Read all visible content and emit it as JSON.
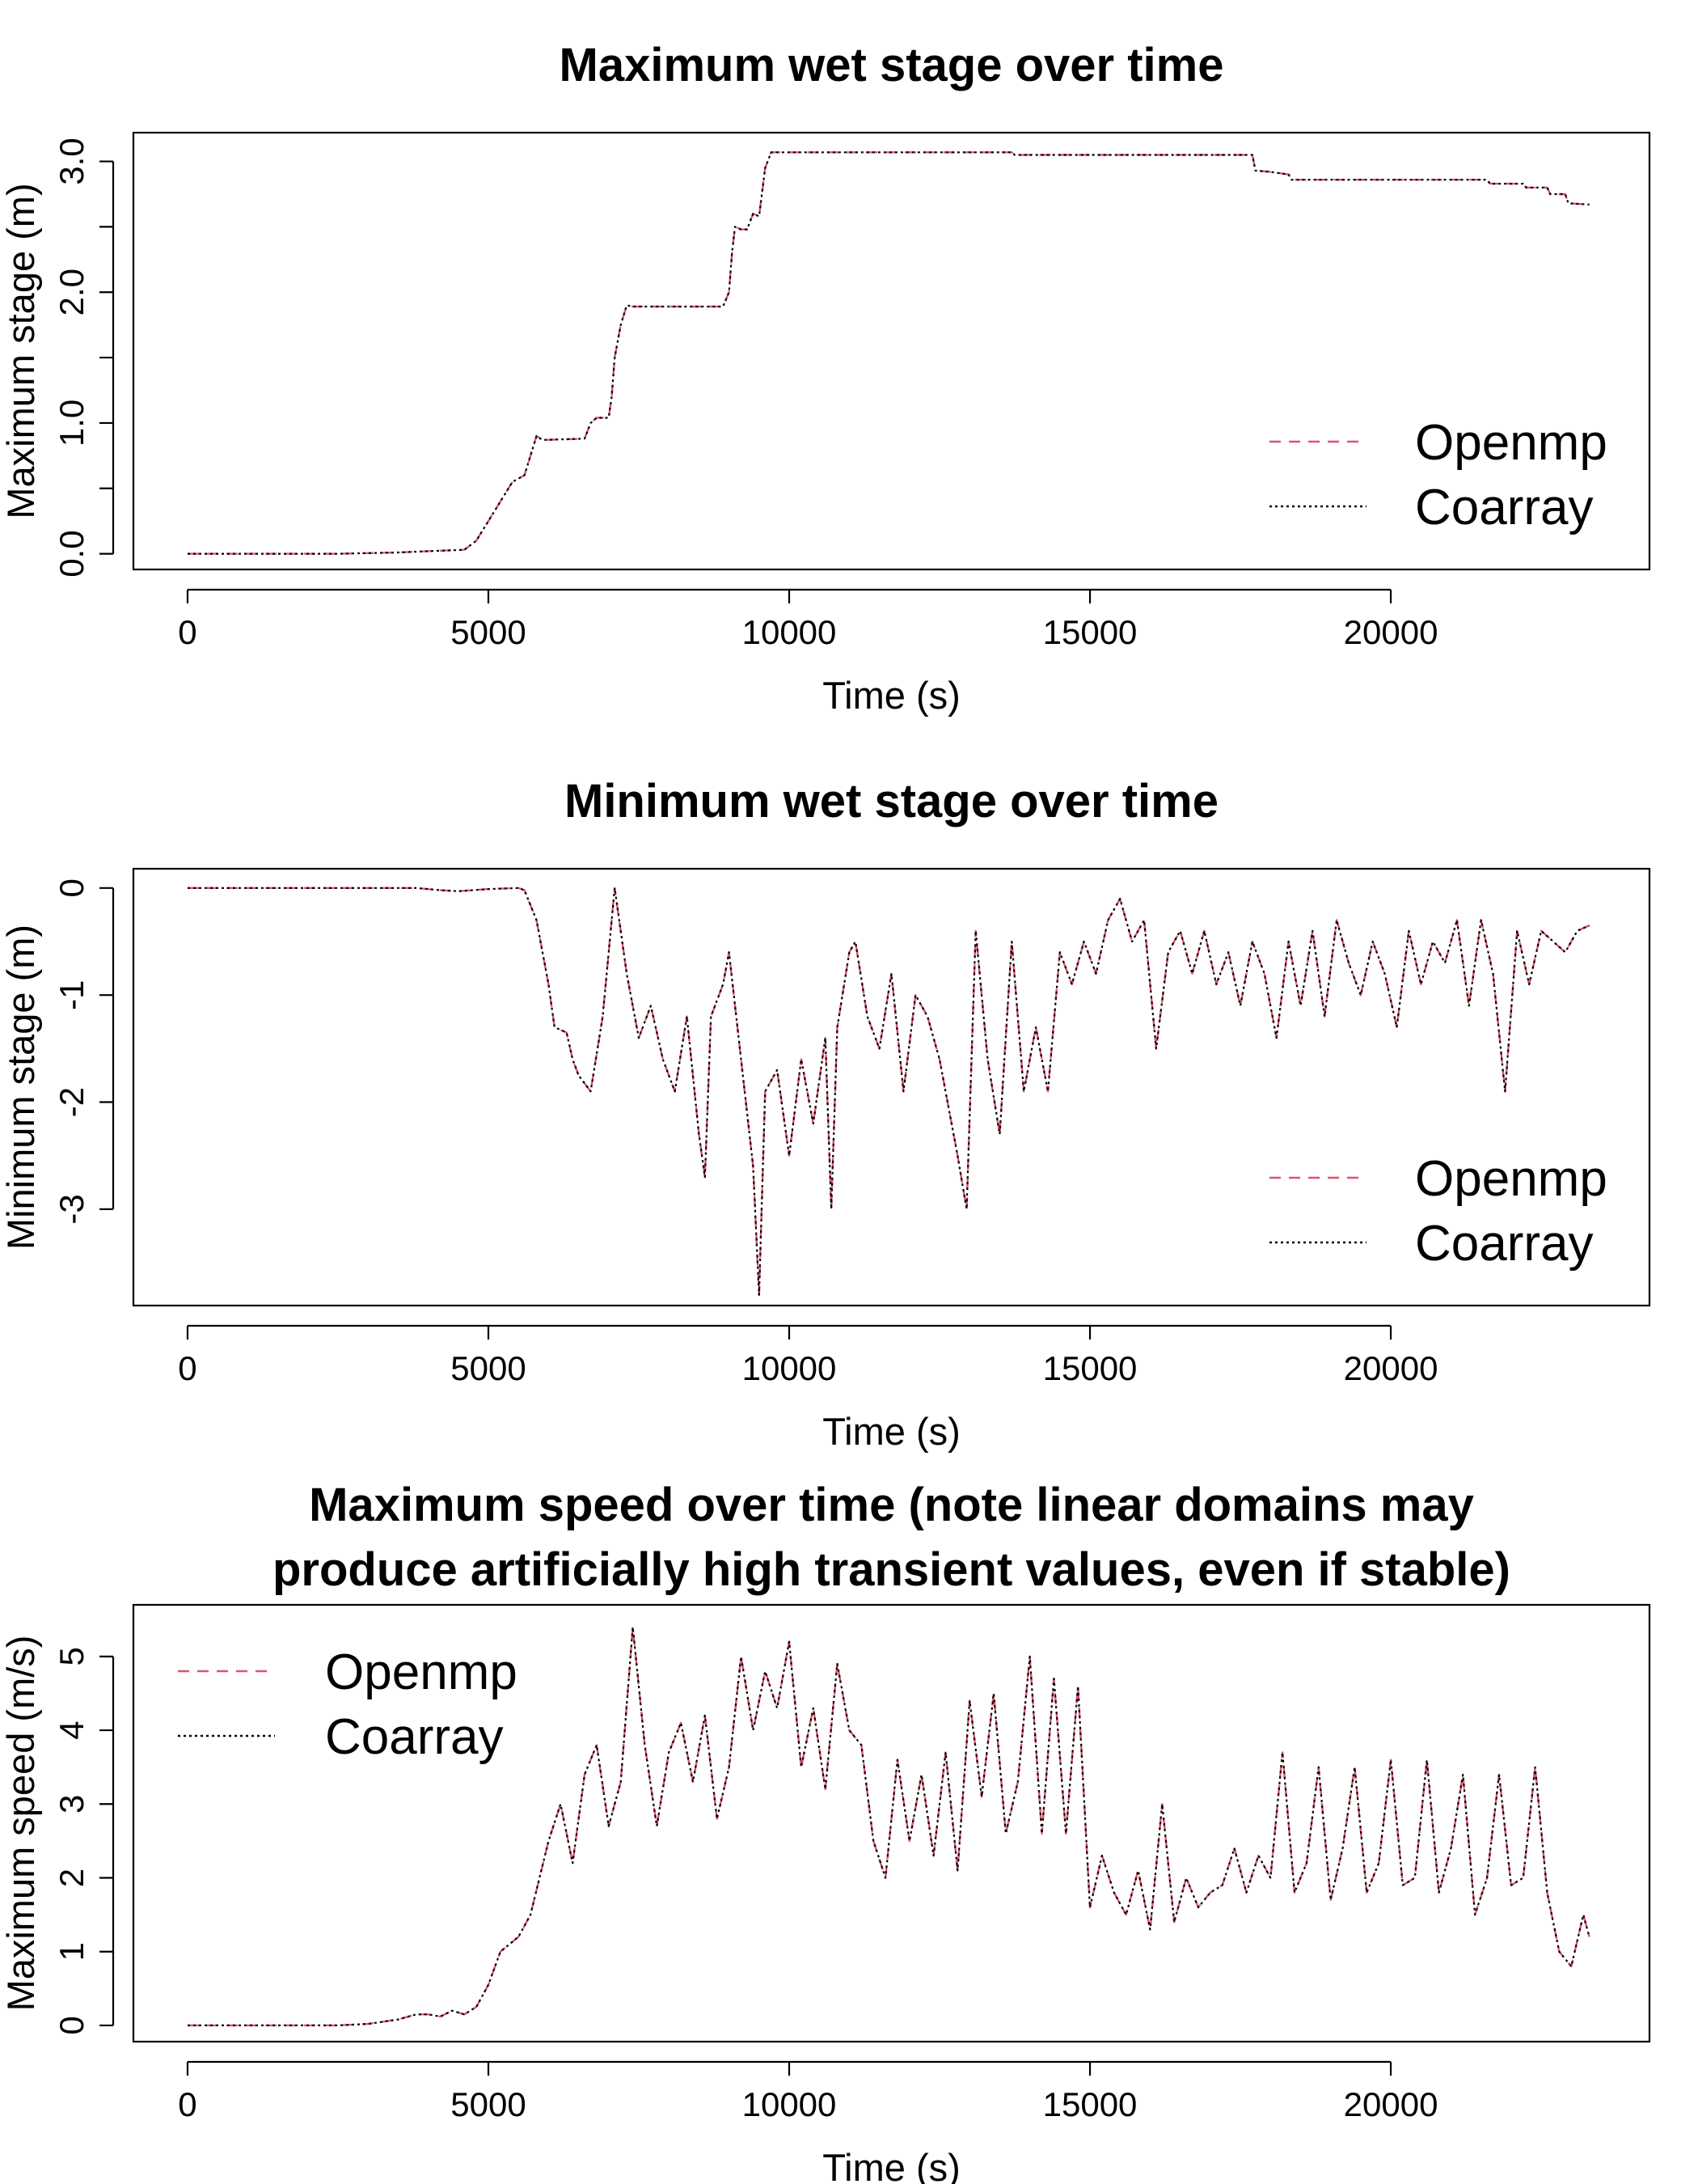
{
  "chart_data": [
    {
      "type": "line",
      "title": "Maximum wet stage over time",
      "xlabel": "Time (s)",
      "ylabel": "Maximum stage (m)",
      "xlim": [
        -900,
        24300
      ],
      "ylim": [
        -0.12,
        3.22
      ],
      "xticks": [
        0,
        5000,
        10000,
        15000,
        20000
      ],
      "xtick_labels": [
        "0",
        "5000",
        "10000",
        "15000",
        "20000"
      ],
      "yticks": [
        0,
        0.5,
        1.0,
        1.5,
        2.0,
        2.5,
        3.0
      ],
      "ytick_labels": [
        "0.0",
        "",
        "1.0",
        "",
        "2.0",
        "",
        "3.0"
      ],
      "grid": false,
      "legend_position": "bottom-right",
      "series": [
        {
          "name": "Openmp",
          "color": "#DF536B",
          "style": "dashed"
        },
        {
          "name": "Coarray",
          "color": "#000000",
          "style": "dotted"
        }
      ],
      "x": [
        0,
        2500,
        3500,
        4000,
        4600,
        4800,
        5000,
        5200,
        5400,
        5600,
        5700,
        5800,
        5900,
        6600,
        6700,
        6800,
        7000,
        7050,
        7100,
        7200,
        7300,
        7400,
        8900,
        9000,
        9050,
        9100,
        9200,
        9300,
        9400,
        9500,
        9600,
        9700,
        10000,
        13700,
        13750,
        17700,
        17750,
        18000,
        18300,
        18350,
        21600,
        21650,
        22200,
        22250,
        22600,
        22650,
        22900,
        22950,
        23300
      ],
      "y": [
        0.0,
        0.0,
        0.01,
        0.02,
        0.03,
        0.1,
        0.25,
        0.4,
        0.55,
        0.6,
        0.75,
        0.9,
        0.87,
        0.88,
        1.0,
        1.04,
        1.04,
        1.2,
        1.5,
        1.75,
        1.9,
        1.89,
        1.89,
        2.0,
        2.3,
        2.5,
        2.48,
        2.48,
        2.6,
        2.58,
        2.95,
        3.07,
        3.07,
        3.07,
        3.05,
        3.05,
        2.93,
        2.92,
        2.9,
        2.86,
        2.86,
        2.83,
        2.83,
        2.8,
        2.8,
        2.75,
        2.75,
        2.68,
        2.67
      ]
    },
    {
      "type": "line",
      "title": "Minimum wet stage over time",
      "xlabel": "Time (s)",
      "ylabel": "Minimum stage (m)",
      "xlim": [
        -900,
        24300
      ],
      "ylim": [
        -3.9,
        0.18
      ],
      "xticks": [
        0,
        5000,
        10000,
        15000,
        20000
      ],
      "xtick_labels": [
        "0",
        "5000",
        "10000",
        "15000",
        "20000"
      ],
      "yticks": [
        0,
        -1,
        -2,
        -3
      ],
      "ytick_labels": [
        "0",
        "-1",
        "-2",
        "-3"
      ],
      "grid": false,
      "legend_position": "bottom-right",
      "series": [
        {
          "name": "Openmp",
          "color": "#DF536B",
          "style": "dashed"
        },
        {
          "name": "Coarray",
          "color": "#000000",
          "style": "dotted"
        }
      ],
      "x": [
        0,
        2000,
        3800,
        4200,
        4500,
        5000,
        5500,
        5600,
        5800,
        6000,
        6100,
        6300,
        6400,
        6500,
        6700,
        6900,
        7100,
        7300,
        7500,
        7700,
        7900,
        8100,
        8300,
        8500,
        8600,
        8700,
        8900,
        9000,
        9200,
        9400,
        9500,
        9600,
        9800,
        10000,
        10200,
        10400,
        10600,
        10700,
        10800,
        11000,
        11100,
        11300,
        11500,
        11700,
        11900,
        12100,
        12300,
        12500,
        12800,
        12950,
        13100,
        13300,
        13500,
        13700,
        13900,
        14100,
        14300,
        14500,
        14700,
        14900,
        15100,
        15300,
        15500,
        15700,
        15900,
        16100,
        16300,
        16500,
        16700,
        16900,
        17100,
        17300,
        17500,
        17700,
        17900,
        18100,
        18300,
        18500,
        18700,
        18900,
        19100,
        19300,
        19500,
        19700,
        19900,
        20100,
        20300,
        20500,
        20700,
        20900,
        21100,
        21300,
        21500,
        21700,
        21900,
        22100,
        22300,
        22500,
        22700,
        22900,
        23100,
        23300
      ],
      "y": [
        0.0,
        0.0,
        0.0,
        -0.02,
        -0.03,
        -0.01,
        0.0,
        -0.02,
        -0.3,
        -0.9,
        -1.3,
        -1.35,
        -1.6,
        -1.75,
        -1.9,
        -1.2,
        0.0,
        -0.8,
        -1.4,
        -1.1,
        -1.6,
        -1.9,
        -1.2,
        -2.3,
        -2.7,
        -1.2,
        -0.9,
        -0.6,
        -1.6,
        -2.6,
        -3.8,
        -1.9,
        -1.7,
        -2.5,
        -1.6,
        -2.2,
        -1.4,
        -3.0,
        -1.3,
        -0.6,
        -0.5,
        -1.2,
        -1.5,
        -0.8,
        -1.9,
        -1.0,
        -1.2,
        -1.6,
        -2.5,
        -3.0,
        -0.4,
        -1.6,
        -2.3,
        -0.5,
        -1.9,
        -1.3,
        -1.9,
        -0.6,
        -0.9,
        -0.5,
        -0.8,
        -0.3,
        -0.1,
        -0.5,
        -0.3,
        -1.5,
        -0.6,
        -0.4,
        -0.8,
        -0.4,
        -0.9,
        -0.6,
        -1.1,
        -0.5,
        -0.8,
        -1.4,
        -0.5,
        -1.1,
        -0.4,
        -1.2,
        -0.3,
        -0.7,
        -1.0,
        -0.5,
        -0.8,
        -1.3,
        -0.4,
        -0.9,
        -0.5,
        -0.7,
        -0.3,
        -1.1,
        -0.3,
        -0.8,
        -1.9,
        -0.4,
        -0.9,
        -0.4,
        -0.5,
        -0.6,
        -0.4,
        -0.35
      ]
    },
    {
      "type": "line",
      "title": "Maximum speed over time (note linear domains may produce artificially high transient values, even if stable)",
      "title_lines": [
        "Maximum speed over time (note linear domains may",
        "produce artificially high transient values, even if stable)"
      ],
      "xlabel": "Time (s)",
      "ylabel": "Maximum speed (m/s)",
      "xlim": [
        -900,
        24300
      ],
      "ylim": [
        -0.22,
        5.7
      ],
      "xticks": [
        0,
        5000,
        10000,
        15000,
        20000
      ],
      "xtick_labels": [
        "0",
        "5000",
        "10000",
        "15000",
        "20000"
      ],
      "yticks": [
        0,
        1,
        2,
        3,
        4,
        5
      ],
      "ytick_labels": [
        "0",
        "1",
        "2",
        "3",
        "4",
        "5"
      ],
      "grid": false,
      "legend_position": "top-left",
      "series": [
        {
          "name": "Openmp",
          "color": "#DF536B",
          "style": "dashed"
        },
        {
          "name": "Coarray",
          "color": "#000000",
          "style": "dotted"
        }
      ],
      "x": [
        0,
        2500,
        3000,
        3500,
        3800,
        4000,
        4200,
        4400,
        4600,
        4800,
        5000,
        5200,
        5500,
        5700,
        6000,
        6200,
        6400,
        6600,
        6800,
        7000,
        7200,
        7400,
        7600,
        7800,
        8000,
        8200,
        8400,
        8600,
        8800,
        9000,
        9200,
        9400,
        9600,
        9800,
        10000,
        10200,
        10400,
        10600,
        10800,
        11000,
        11200,
        11400,
        11600,
        11800,
        12000,
        12200,
        12400,
        12600,
        12800,
        13000,
        13200,
        13400,
        13600,
        13800,
        14000,
        14200,
        14400,
        14600,
        14800,
        15000,
        15200,
        15400,
        15600,
        15800,
        16000,
        16200,
        16400,
        16600,
        16800,
        17000,
        17200,
        17400,
        17600,
        17800,
        18000,
        18200,
        18400,
        18600,
        18800,
        19000,
        19200,
        19400,
        19600,
        19800,
        20000,
        20200,
        20400,
        20600,
        20800,
        21000,
        21200,
        21400,
        21600,
        21800,
        22000,
        22200,
        22400,
        22600,
        22800,
        23000,
        23200,
        23300
      ],
      "y": [
        0.0,
        0.0,
        0.02,
        0.08,
        0.15,
        0.15,
        0.12,
        0.2,
        0.15,
        0.25,
        0.55,
        1.0,
        1.2,
        1.5,
        2.5,
        3.0,
        2.2,
        3.4,
        3.8,
        2.7,
        3.3,
        5.4,
        3.8,
        2.7,
        3.7,
        4.1,
        3.3,
        4.2,
        2.8,
        3.5,
        5.0,
        4.0,
        4.8,
        4.3,
        5.2,
        3.5,
        4.3,
        3.2,
        4.9,
        4.0,
        3.8,
        2.5,
        2.0,
        3.6,
        2.5,
        3.4,
        2.3,
        3.7,
        2.1,
        4.4,
        3.1,
        4.5,
        2.6,
        3.3,
        5.0,
        2.6,
        4.7,
        2.6,
        4.6,
        1.6,
        2.3,
        1.8,
        1.5,
        2.1,
        1.3,
        3.0,
        1.4,
        2.0,
        1.6,
        1.8,
        1.9,
        2.4,
        1.8,
        2.3,
        2.0,
        3.7,
        1.8,
        2.2,
        3.5,
        1.7,
        2.4,
        3.5,
        1.8,
        2.2,
        3.6,
        1.9,
        2.0,
        3.6,
        1.8,
        2.4,
        3.4,
        1.5,
        2.0,
        3.4,
        1.9,
        2.0,
        3.5,
        1.8,
        1.0,
        0.8,
        1.5,
        1.2
      ]
    }
  ]
}
